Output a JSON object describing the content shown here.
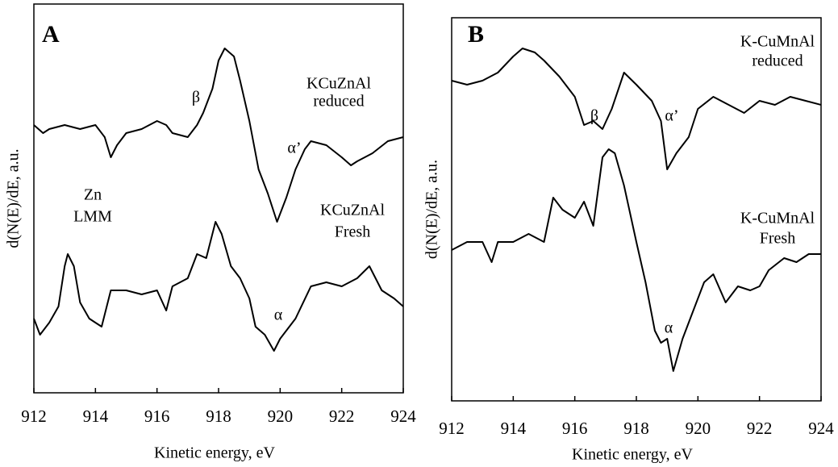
{
  "chart_data": [
    {
      "type": "line",
      "panel_label": "A",
      "x_label": "Kinetic energy, eV",
      "y_label": "d(N(E)/dE, a.u.",
      "xlim": [
        912,
        924
      ],
      "xticks": [
        912,
        914,
        916,
        918,
        920,
        922,
        924
      ],
      "ylim": [
        0,
        482
      ],
      "annotations": [
        "KCuZnAl",
        "reduced",
        "β",
        "α’",
        "Zn",
        "LMM",
        "KCuZnAl",
        "Fresh",
        "α"
      ],
      "series": [
        {
          "color": "#000000",
          "x": [
            912,
            912.3,
            912.5,
            913,
            913.5,
            914,
            914.3,
            914.5,
            914.7,
            915,
            915.5,
            916,
            916.3,
            916.5,
            917,
            917.3,
            917.5,
            917.8,
            918,
            918.2,
            918.5,
            918.7,
            919,
            919.3,
            919.6,
            919.9,
            920.2,
            920.5,
            920.8,
            921,
            921.5,
            922,
            922.3,
            922.5,
            923,
            923.5,
            924
          ],
          "values": [
            332,
            322,
            327,
            332,
            327,
            332,
            317,
            292,
            307,
            322,
            327,
            337,
            332,
            322,
            317,
            332,
            347,
            377,
            412,
            427,
            417,
            387,
            337,
            277,
            247,
            212,
            242,
            277,
            302,
            312,
            307,
            292,
            282,
            287,
            297,
            312,
            317
          ]
        },
        {
          "color": "#000000",
          "x": [
            912,
            912.2,
            912.5,
            912.8,
            913,
            913.1,
            913.3,
            913.5,
            913.8,
            914,
            914.2,
            914.5,
            915,
            915.5,
            916,
            916.3,
            916.5,
            917,
            917.3,
            917.6,
            917.9,
            918.1,
            918.4,
            918.7,
            919,
            919.2,
            919.5,
            919.8,
            920,
            920.5,
            921,
            921.5,
            922,
            922.5,
            922.9,
            923.3,
            923.7,
            924
          ],
          "values": [
            92,
            72,
            87,
            107,
            157,
            172,
            157,
            112,
            92,
            87,
            82,
            127,
            127,
            122,
            127,
            102,
            132,
            142,
            172,
            167,
            212,
            197,
            157,
            142,
            117,
            82,
            72,
            52,
            67,
            92,
            132,
            137,
            132,
            142,
            157,
            127,
            117,
            107
          ]
        }
      ]
    },
    {
      "type": "line",
      "panel_label": "B",
      "x_label": "Kinetic energy, eV",
      "y_label": "d(N(E)/dE, a.u.",
      "xlim": [
        912,
        924
      ],
      "xticks": [
        912,
        914,
        916,
        918,
        920,
        922,
        924
      ],
      "ylim": [
        0,
        475
      ],
      "annotations": [
        "K-CuMnAl",
        "reduced",
        "β",
        "α’",
        "K-CuMnAl",
        "Fresh",
        "α"
      ],
      "series": [
        {
          "color": "#000000",
          "x": [
            912,
            912.5,
            913,
            913.5,
            914,
            914.3,
            914.7,
            915,
            915.5,
            916,
            916.3,
            916.6,
            916.9,
            917.2,
            917.6,
            918,
            918.5,
            918.8,
            919,
            919.3,
            919.7,
            920,
            920.5,
            921,
            921.5,
            922,
            922.5,
            923,
            923.5,
            924
          ],
          "values": [
            397,
            392,
            397,
            407,
            427,
            437,
            432,
            422,
            402,
            377,
            342,
            347,
            337,
            362,
            407,
            392,
            372,
            347,
            287,
            307,
            327,
            362,
            377,
            367,
            357,
            372,
            367,
            377,
            372,
            367
          ]
        },
        {
          "color": "#000000",
          "x": [
            912,
            912.5,
            913,
            913.3,
            913.5,
            914,
            914.5,
            915,
            915.3,
            915.6,
            916,
            916.3,
            916.6,
            916.9,
            917.1,
            917.3,
            917.6,
            918,
            918.3,
            918.6,
            918.8,
            919,
            919.2,
            919.5,
            919.8,
            920.2,
            920.5,
            920.9,
            921.3,
            921.7,
            922,
            922.3,
            922.8,
            923.2,
            923.6,
            924
          ],
          "values": [
            187,
            197,
            197,
            172,
            197,
            197,
            207,
            197,
            252,
            237,
            227,
            247,
            217,
            302,
            312,
            307,
            267,
            197,
            147,
            87,
            72,
            77,
            37,
            77,
            107,
            147,
            157,
            122,
            142,
            137,
            142,
            162,
            177,
            172,
            182,
            182
          ]
        }
      ]
    }
  ]
}
